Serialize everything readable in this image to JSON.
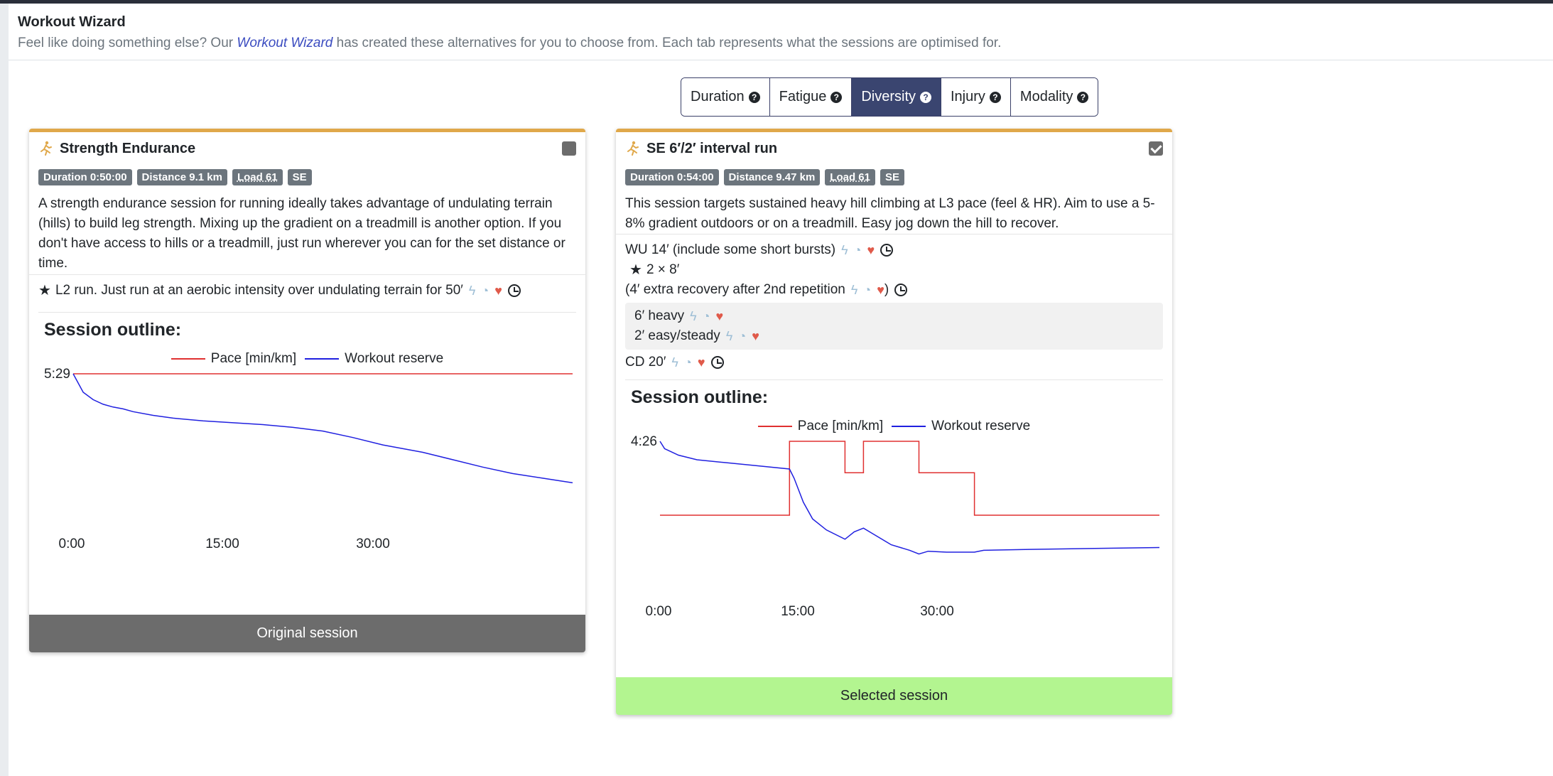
{
  "modal": {
    "title": "Workout Wizard",
    "subtitle_before": "Feel like doing something else? Our ",
    "subtitle_link": "Workout Wizard",
    "subtitle_after": " has created these alternatives for you to choose from. Each tab represents what the sessions are optimised for."
  },
  "tabs": [
    {
      "label": "Duration",
      "active": false
    },
    {
      "label": "Fatigue",
      "active": false
    },
    {
      "label": "Diversity",
      "active": true
    },
    {
      "label": "Injury",
      "active": false
    },
    {
      "label": "Modality",
      "active": false
    }
  ],
  "cards": [
    {
      "title": "Strength Endurance",
      "checked": false,
      "badges": {
        "duration": "Duration 0:50:00",
        "distance": "Distance 9.1 km",
        "load": "Load 61",
        "type": "SE"
      },
      "description": "A strength endurance session for running ideally takes advantage of undulating terrain (hills) to build leg strength. Mixing up the gradient on a treadmill is another option. If you don't have access to hills or a treadmill, just run wherever you can for the set distance or time.",
      "step1": "L2 run. Just run at an aerobic intensity over undulating terrain for 50′",
      "outline_title": "Session outline:",
      "footer": "Original session"
    },
    {
      "title": "SE 6′/2′ interval run",
      "checked": true,
      "badges": {
        "duration": "Duration 0:54:00",
        "distance": "Distance 9.47 km",
        "load": "Load 61",
        "type": "SE"
      },
      "description": "This session targets sustained heavy hill climbing at L3 pace (feel & HR). Aim to use a 5-8% gradient outdoors or on a treadmill. Easy jog down the hill to recover.",
      "warmup": "WU 14′ (include some short bursts)",
      "reps": "2 × 8′",
      "extra_recovery_open": "(4′ extra recovery after 2nd repetition",
      "extra_recovery_close": ")",
      "rep_heavy": "6′ heavy",
      "rep_easy": "2′ easy/steady",
      "cooldown": "CD 20′",
      "outline_title": "Session outline:",
      "footer": "Selected session"
    }
  ],
  "chart_data": [
    {
      "type": "line",
      "legend": [
        "Pace [min/km]",
        "Workout reserve"
      ],
      "y_tick_label": "5:29",
      "x_tick_labels": [
        "0:00",
        "15:00",
        "30:00"
      ],
      "xlim": [
        0,
        50
      ],
      "series": [
        {
          "name": "Pace [min/km]",
          "color": "#e03030",
          "points": [
            [
              0,
              1.0
            ],
            [
              50,
              1.0
            ]
          ]
        },
        {
          "name": "Workout reserve",
          "color": "#2020e0",
          "points": [
            [
              0,
              1.0
            ],
            [
              1,
              0.9
            ],
            [
              2,
              0.86
            ],
            [
              3,
              0.835
            ],
            [
              4,
              0.82
            ],
            [
              5,
              0.81
            ],
            [
              6,
              0.795
            ],
            [
              8,
              0.775
            ],
            [
              10,
              0.76
            ],
            [
              13,
              0.745
            ],
            [
              16,
              0.735
            ],
            [
              19,
              0.725
            ],
            [
              22,
              0.71
            ],
            [
              25,
              0.69
            ],
            [
              28,
              0.655
            ],
            [
              31,
              0.615
            ],
            [
              35,
              0.575
            ],
            [
              38,
              0.535
            ],
            [
              41,
              0.495
            ],
            [
              44,
              0.46
            ],
            [
              47,
              0.435
            ],
            [
              50,
              0.41
            ]
          ]
        }
      ]
    },
    {
      "type": "line",
      "legend": [
        "Pace [min/km]",
        "Workout reserve"
      ],
      "y_tick_label": "4:26",
      "x_tick_labels": [
        "0:00",
        "15:00",
        "30:00"
      ],
      "xlim": [
        0,
        54
      ],
      "series": [
        {
          "name": "Pace [min/km]",
          "color": "#e03030",
          "points": [
            [
              0,
              0.6
            ],
            [
              14,
              0.6
            ],
            [
              14,
              1.0
            ],
            [
              20,
              1.0
            ],
            [
              20,
              0.83
            ],
            [
              22,
              0.83
            ],
            [
              22,
              1.0
            ],
            [
              28,
              1.0
            ],
            [
              28,
              0.83
            ],
            [
              34,
              0.83
            ],
            [
              34,
              0.6
            ],
            [
              54,
              0.6
            ]
          ]
        },
        {
          "name": "Workout reserve",
          "color": "#2020e0",
          "points": [
            [
              0,
              1.0
            ],
            [
              0.5,
              0.96
            ],
            [
              2,
              0.925
            ],
            [
              4,
              0.9
            ],
            [
              7,
              0.885
            ],
            [
              10,
              0.87
            ],
            [
              14,
              0.85
            ],
            [
              14.5,
              0.8
            ],
            [
              15.5,
              0.67
            ],
            [
              16.5,
              0.58
            ],
            [
              18,
              0.52
            ],
            [
              20,
              0.47
            ],
            [
              21,
              0.51
            ],
            [
              22,
              0.53
            ],
            [
              23,
              0.5
            ],
            [
              25,
              0.44
            ],
            [
              27,
              0.41
            ],
            [
              28,
              0.39
            ],
            [
              29,
              0.405
            ],
            [
              31,
              0.4
            ],
            [
              34,
              0.4
            ],
            [
              35,
              0.41
            ],
            [
              40,
              0.415
            ],
            [
              47,
              0.42
            ],
            [
              54,
              0.425
            ]
          ]
        }
      ]
    }
  ]
}
